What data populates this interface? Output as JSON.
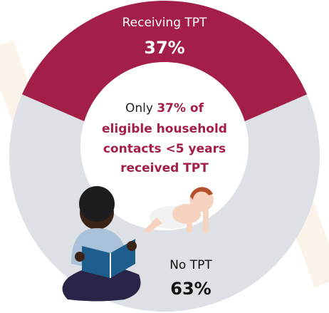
{
  "chart_data": {
    "type": "pie",
    "categories": [
      "Receiving TPT",
      "No TPT"
    ],
    "values": [
      37,
      63
    ],
    "value_labels": [
      "37%",
      "63%"
    ],
    "colors": [
      "#a31f48",
      "#dde1e6"
    ],
    "annotation": {
      "lead": "Only",
      "lines": [
        "37% of",
        "eligible household",
        "contacts <5 years",
        "received TPT"
      ]
    }
  }
}
